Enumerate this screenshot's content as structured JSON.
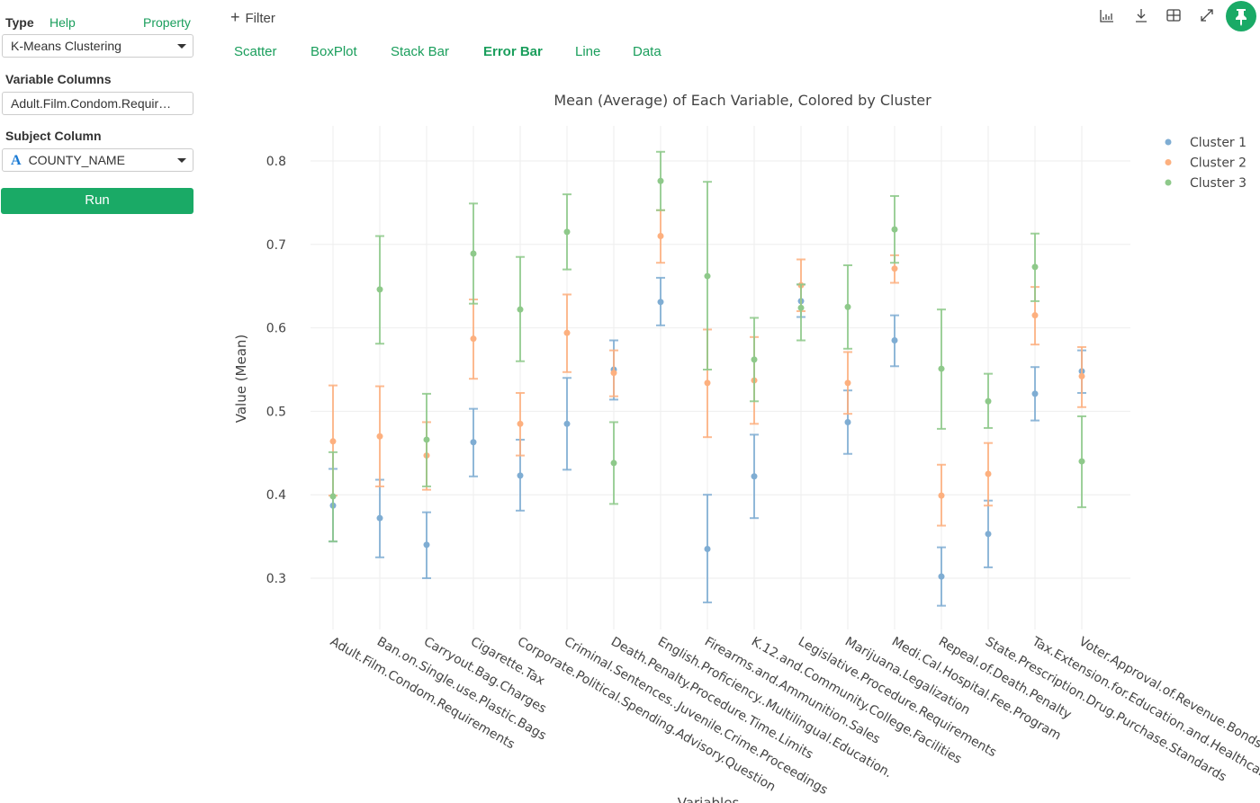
{
  "sidebar": {
    "type_label": "Type",
    "help_link": "Help",
    "property_link": "Property",
    "type_value": "K-Means Clustering",
    "variable_columns_label": "Variable Columns",
    "variable_columns_value": "Adult.Film.Condom.Requir…",
    "subject_column_label": "Subject Column",
    "subject_column_type_icon": "A",
    "subject_column_value": "COUNTY_NAME",
    "run_label": "Run"
  },
  "toolbar": {
    "filter_label": "Filter",
    "icons": [
      "bar-chart-icon",
      "download-icon",
      "table-icon",
      "expand-icon",
      "pin-icon"
    ],
    "accent": "#1aaa66"
  },
  "tabs": [
    {
      "label": "Scatter"
    },
    {
      "label": "BoxPlot"
    },
    {
      "label": "Stack Bar"
    },
    {
      "label": "Error Bar",
      "active": true
    },
    {
      "label": "Line"
    },
    {
      "label": "Data"
    }
  ],
  "chart_data": {
    "type": "error-bar",
    "title": "Mean (Average) of Each Variable, Colored by Cluster",
    "xlabel": "Variables",
    "ylabel": "Value (Mean)",
    "ylim": [
      0.25,
      0.84
    ],
    "yticks": [
      0.3,
      0.4,
      0.5,
      0.6,
      0.7,
      0.8
    ],
    "grid": true,
    "legend": "top-right",
    "categories": [
      "Adult.Film.Condom.Requirements",
      "Ban.on.Single.use.Plastic.Bags",
      "Carryout.Bag.Charges",
      "Cigarette.Tax",
      "Corporate.Political.Spending.Advisory.Question",
      "Criminal.Sentences..Juvenile.Crime.Proceedings",
      "Death.Penalty.Procedure.Time.Limits",
      "English.Proficiency..Multilingual.Education.",
      "Firearms.and.Ammunition.Sales",
      "K.12.and.Community.College.Facilities",
      "Legislative.Procedure.Requirements",
      "Marijuana.Legalization",
      "Medi.Cal.Hospital.Fee.Program",
      "Repeal.of.Death.Penalty",
      "State.Prescription.Drug.Purchase.Standards",
      "Tax.Extension.for.Education.and.Healthcare",
      "Voter.Approval.of.Revenue.Bonds"
    ],
    "series": [
      {
        "name": "Cluster 1",
        "color": "#7fadd3",
        "mean": [
          0.387,
          0.372,
          0.34,
          0.463,
          0.423,
          0.485,
          0.55,
          0.631,
          0.335,
          0.422,
          0.632,
          0.487,
          0.585,
          0.302,
          0.353,
          0.521,
          0.548
        ],
        "low": [
          0.344,
          0.325,
          0.3,
          0.422,
          0.381,
          0.43,
          0.514,
          0.603,
          0.271,
          0.372,
          0.613,
          0.449,
          0.554,
          0.267,
          0.313,
          0.489,
          0.522
        ],
        "high": [
          0.431,
          0.418,
          0.379,
          0.503,
          0.466,
          0.54,
          0.585,
          0.66,
          0.4,
          0.472,
          0.652,
          0.525,
          0.615,
          0.337,
          0.393,
          0.553,
          0.573
        ]
      },
      {
        "name": "Cluster 2",
        "color": "#fdb07f",
        "mean": [
          0.464,
          0.47,
          0.447,
          0.587,
          0.485,
          0.594,
          0.546,
          0.71,
          0.534,
          0.537,
          0.651,
          0.534,
          0.671,
          0.399,
          0.425,
          0.615,
          0.542
        ],
        "low": [
          0.399,
          0.41,
          0.406,
          0.539,
          0.447,
          0.547,
          0.518,
          0.678,
          0.469,
          0.485,
          0.62,
          0.497,
          0.654,
          0.363,
          0.387,
          0.58,
          0.505
        ],
        "high": [
          0.531,
          0.53,
          0.487,
          0.634,
          0.522,
          0.64,
          0.573,
          0.741,
          0.598,
          0.589,
          0.682,
          0.571,
          0.687,
          0.436,
          0.462,
          0.649,
          0.577
        ]
      },
      {
        "name": "Cluster 3",
        "color": "#8ec98a",
        "mean": [
          0.398,
          0.646,
          0.466,
          0.689,
          0.622,
          0.715,
          0.438,
          0.776,
          0.662,
          0.562,
          0.624,
          0.625,
          0.718,
          0.551,
          0.512,
          0.673,
          0.44
        ],
        "low": [
          0.344,
          0.581,
          0.41,
          0.629,
          0.56,
          0.67,
          0.389,
          0.741,
          0.55,
          0.512,
          0.585,
          0.575,
          0.678,
          0.479,
          0.48,
          0.632,
          0.385
        ],
        "high": [
          0.451,
          0.71,
          0.521,
          0.749,
          0.685,
          0.76,
          0.487,
          0.811,
          0.775,
          0.612,
          0.652,
          0.675,
          0.758,
          0.622,
          0.545,
          0.713,
          0.494
        ]
      }
    ]
  }
}
